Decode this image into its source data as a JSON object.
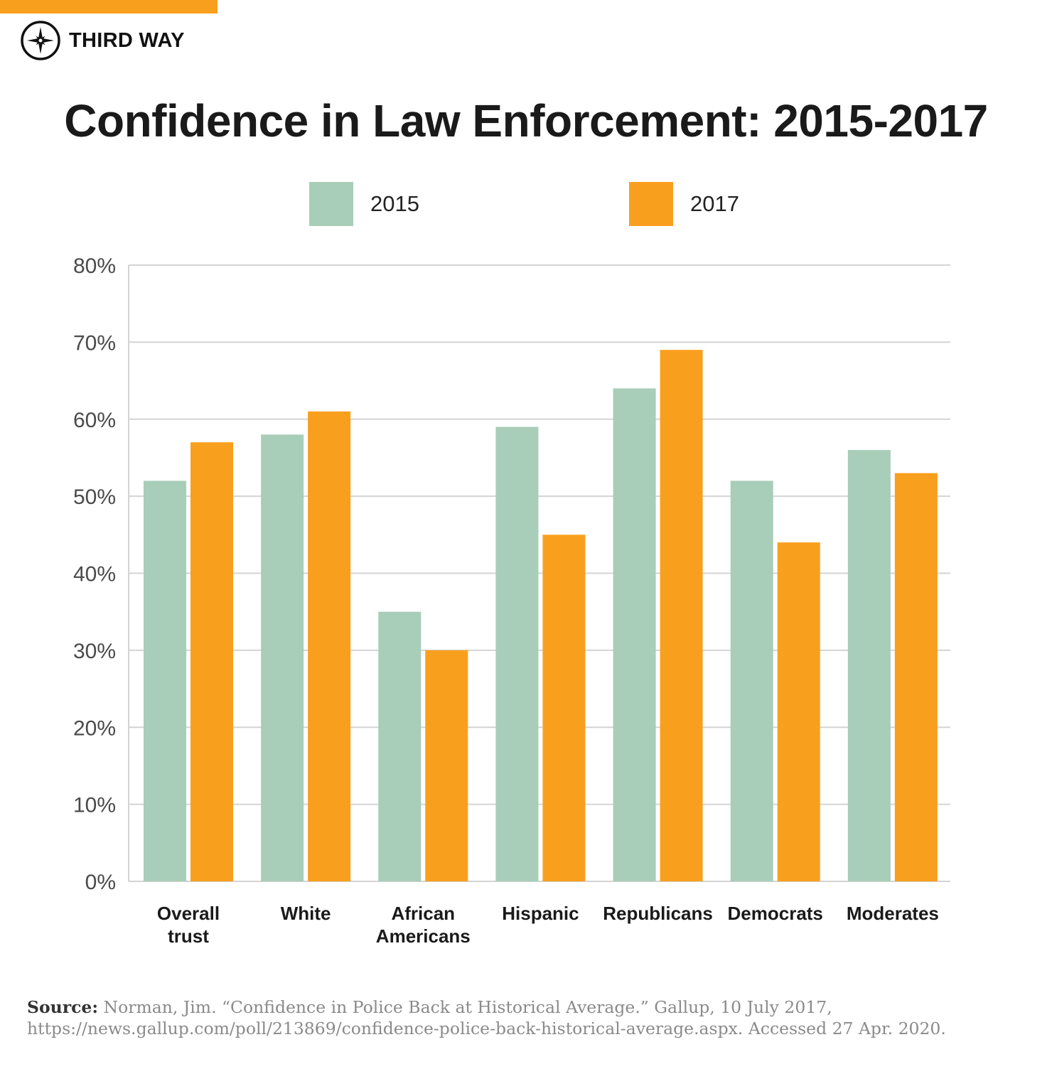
{
  "brand": {
    "name": "THIRD WAY"
  },
  "colors": {
    "accent": "#f99f1e",
    "series_2015": "#a8cdb8",
    "series_2017": "#f99f1e",
    "grid": "#d4d4d4"
  },
  "chart_data": {
    "type": "bar",
    "title": "Confidence in Law Enforcement: 2015-2017",
    "categories": [
      [
        "Overall",
        "trust"
      ],
      [
        "White"
      ],
      [
        "African",
        "Americans"
      ],
      [
        "Hispanic"
      ],
      [
        "Republicans"
      ],
      [
        "Democrats"
      ],
      [
        "Moderates"
      ]
    ],
    "series": [
      {
        "name": "2015",
        "color": "#a8cdb8",
        "values": [
          52,
          58,
          35,
          59,
          64,
          52,
          56
        ]
      },
      {
        "name": "2017",
        "color": "#f99f1e",
        "values": [
          57,
          61,
          30,
          45,
          69,
          44,
          53
        ]
      }
    ],
    "ylim": [
      0,
      80
    ],
    "yticks": [
      0,
      10,
      20,
      30,
      40,
      50,
      60,
      70,
      80
    ],
    "ytick_suffix": "%",
    "grid": true,
    "legend_position": "top-center",
    "xlabel": "",
    "ylabel": ""
  },
  "source": {
    "label": "Source:",
    "text": "Norman, Jim. “Confidence in Police Back at Historical Average.” Gallup, 10 July 2017, https://news.gallup.com/poll/213869/confidence-police-back-historical-average.aspx. Accessed 27 Apr. 2020."
  }
}
